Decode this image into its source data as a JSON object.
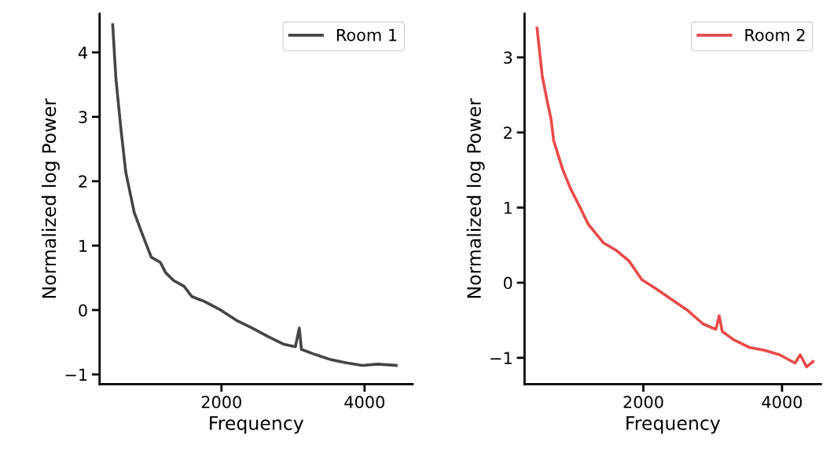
{
  "chart_data": [
    {
      "type": "line",
      "xlabel": "Frequency",
      "ylabel": "Normalized log Power",
      "legend": "top right",
      "grid": false,
      "xlim": [
        297,
        4670
      ],
      "ylim": [
        -1.15,
        4.6
      ],
      "xticks": [
        2000,
        4000
      ],
      "yticks": [
        {
          "value": -1,
          "label": "−1"
        },
        0,
        1,
        2,
        3,
        4
      ],
      "series": [
        {
          "name": "Room 1",
          "color": "#454545",
          "x": [
            480,
            524,
            553,
            597,
            663,
            725,
            780,
            890,
            1019,
            1146,
            1220,
            1330,
            1476,
            1586,
            1769,
            1989,
            2209,
            2429,
            2648,
            2868,
            3033,
            3088,
            3117,
            3308,
            3527,
            3747,
            3967,
            4187,
            4443
          ],
          "values": [
            4.43,
            3.61,
            3.28,
            2.79,
            2.14,
            1.81,
            1.52,
            1.19,
            0.82,
            0.74,
            0.58,
            0.46,
            0.37,
            0.21,
            0.13,
            0.0,
            -0.16,
            -0.28,
            -0.41,
            -0.53,
            -0.57,
            -0.28,
            -0.61,
            -0.69,
            -0.77,
            -0.82,
            -0.86,
            -0.84,
            -0.86
          ]
        }
      ]
    },
    {
      "type": "line",
      "xlabel": "Frequency",
      "ylabel": "Normalized log Power",
      "legend": "top right",
      "grid": false,
      "xlim": [
        287,
        4560
      ],
      "ylim": [
        -1.35,
        3.58
      ],
      "xticks": [
        2000,
        4000
      ],
      "yticks": [
        {
          "value": -1,
          "label": "−1"
        },
        0,
        1,
        2,
        3
      ],
      "series": [
        {
          "name": "Room 2",
          "color": "#e84a4a",
          "x": [
            467,
            541,
            615,
            671,
            707,
            836,
            947,
            1094,
            1204,
            1425,
            1610,
            1793,
            1978,
            2199,
            2420,
            2641,
            2862,
            3046,
            3094,
            3138,
            3304,
            3525,
            3746,
            3967,
            4188,
            4262,
            4354,
            4446
          ],
          "values": [
            3.39,
            2.76,
            2.41,
            2.17,
            1.89,
            1.51,
            1.26,
            0.99,
            0.78,
            0.53,
            0.43,
            0.29,
            0.04,
            -0.09,
            -0.23,
            -0.37,
            -0.55,
            -0.62,
            -0.44,
            -0.65,
            -0.76,
            -0.86,
            -0.9,
            -0.96,
            -1.07,
            -0.96,
            -1.12,
            -1.05
          ]
        }
      ]
    }
  ]
}
